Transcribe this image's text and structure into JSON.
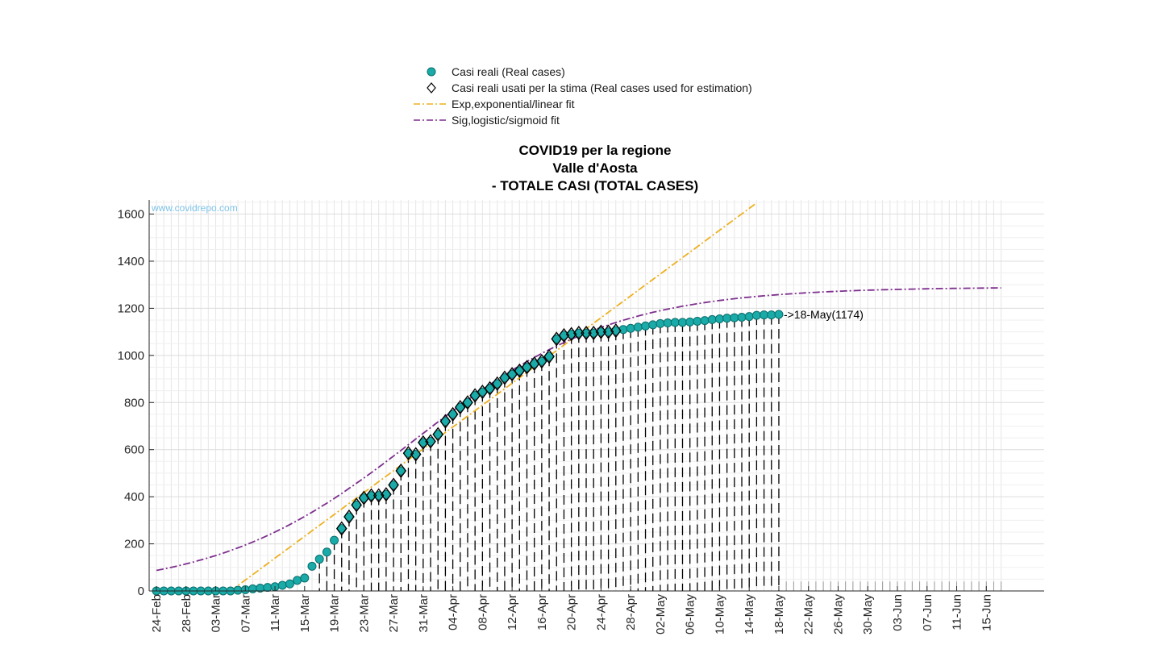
{
  "chart_data": {
    "type": "scatter",
    "title": [
      "COVID19 per la regione",
      "Valle d'Aosta",
      "- TOTALE CASI (TOTAL CASES)"
    ],
    "watermark": "www.covidrepo.com",
    "xlabel": "",
    "ylabel": "",
    "x_start": "24-Feb",
    "x_days": 115,
    "ylim": [
      0,
      1660
    ],
    "yticks": [
      0,
      200,
      400,
      600,
      800,
      1000,
      1200,
      1400,
      1600
    ],
    "xticks": [
      "24-Feb",
      "28-Feb",
      "03-Mar",
      "07-Mar",
      "11-Mar",
      "15-Mar",
      "19-Mar",
      "23-Mar",
      "27-Mar",
      "31-Mar",
      "04-Apr",
      "08-Apr",
      "12-Apr",
      "16-Apr",
      "20-Apr",
      "24-Apr",
      "28-Apr",
      "02-May",
      "06-May",
      "10-May",
      "14-May",
      "18-May",
      "22-May",
      "26-May",
      "30-May",
      "03-Jun",
      "07-Jun",
      "11-Jun",
      "15-Jun"
    ],
    "grid": true,
    "legend_position": "top",
    "legend": [
      {
        "label": "Casi reali (Real cases)",
        "marker": "circle",
        "color": "#1aaaa8"
      },
      {
        "label": "Casi reali usati per la stima (Real cases used for estimation)",
        "marker": "diamond",
        "color": "#000000"
      },
      {
        "label": "Exp,exponential/linear fit",
        "marker": "dashdot",
        "color": "#edb120"
      },
      {
        "label": "Sig,logistic/sigmoid fit",
        "marker": "dashdot",
        "color": "#7e2f8e"
      }
    ],
    "annotation": {
      "label": "->18-May(1174)",
      "day": 84,
      "value": 1174
    },
    "series": [
      {
        "name": "Casi reali (Real cases)",
        "color": "#1aaaa8",
        "values": [
          0,
          0,
          0,
          0,
          0,
          0,
          0,
          0,
          0,
          0,
          0,
          3,
          5,
          9,
          12,
          15,
          18,
          24,
          30,
          45,
          55,
          105,
          135,
          165,
          215,
          265,
          315,
          365,
          395,
          405,
          405,
          410,
          450,
          510,
          585,
          580,
          630,
          635,
          665,
          720,
          750,
          780,
          800,
          830,
          845,
          860,
          880,
          905,
          920,
          935,
          950,
          965,
          975,
          995,
          1070,
          1085,
          1090,
          1095,
          1095,
          1095,
          1100,
          1100,
          1105,
          1110,
          1115,
          1120,
          1125,
          1130,
          1135,
          1138,
          1140,
          1140,
          1142,
          1145,
          1148,
          1152,
          1155,
          1158,
          1160,
          1162,
          1165,
          1170,
          1172,
          1172,
          1174
        ]
      },
      {
        "name": "Casi reali usati per la stima (Real cases used for estimation)",
        "color": "#000000",
        "day_start": 25,
        "values": [
          265,
          315,
          365,
          395,
          405,
          405,
          410,
          450,
          510,
          585,
          580,
          630,
          635,
          665,
          720,
          750,
          780,
          800,
          830,
          845,
          860,
          880,
          905,
          920,
          935,
          950,
          965,
          975,
          995,
          1070,
          1085,
          1090,
          1095,
          1095,
          1095,
          1100,
          1100,
          1105
        ]
      }
    ],
    "fits": [
      {
        "name": "Exp,exponential/linear fit",
        "color": "#edb120",
        "day_start": 10,
        "day_end": 81,
        "start_value": 0,
        "slope_per_day": 23.2
      },
      {
        "name": "Sig,logistic/sigmoid fit",
        "color": "#7e2f8e",
        "day_start": 0,
        "day_end": 114,
        "max_value": 1290,
        "midpoint_day": 35,
        "rate": 0.075
      }
    ]
  }
}
